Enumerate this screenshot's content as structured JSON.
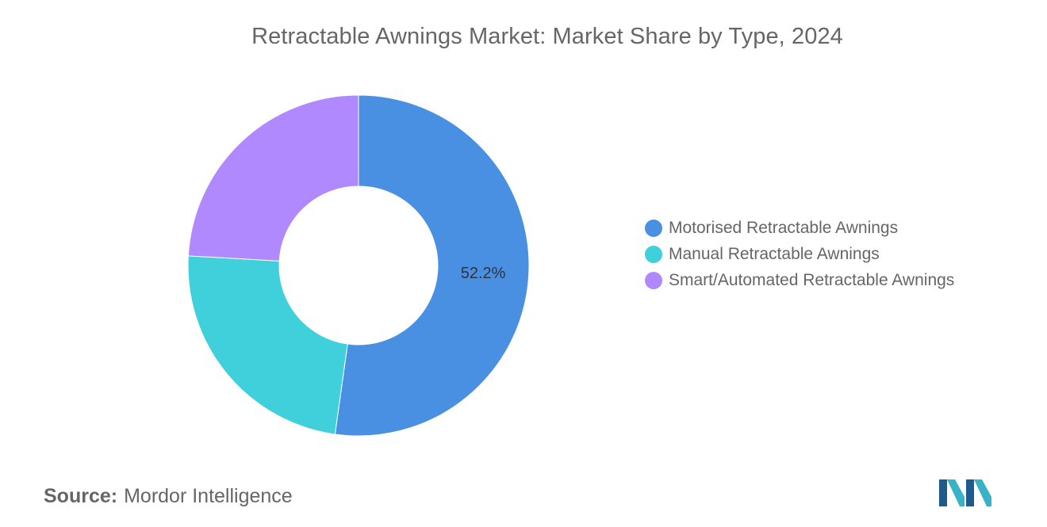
{
  "chart_data": {
    "type": "pie",
    "title": "Retractable Awnings Market: Market Share by Type, 2024",
    "donut": true,
    "start_angle_deg": 0,
    "legend_position": "right",
    "categories": [
      "Motorised Retractable Awnings",
      "Manual Retractable Awnings",
      "Smart/Automated Retractable Awnings"
    ],
    "values": [
      52.2,
      23.7,
      24.1
    ],
    "colors": [
      "#4A90E2",
      "#40D0DB",
      "#B088FF"
    ],
    "data_labels": [
      "52.2%",
      "",
      ""
    ]
  },
  "footer": {
    "source_prefix": "Source:",
    "source_text": "Mordor Intelligence"
  },
  "logo": {
    "name": "mordor-intelligence-logo",
    "colors": [
      "#1F5A8C",
      "#38B2C6"
    ]
  }
}
